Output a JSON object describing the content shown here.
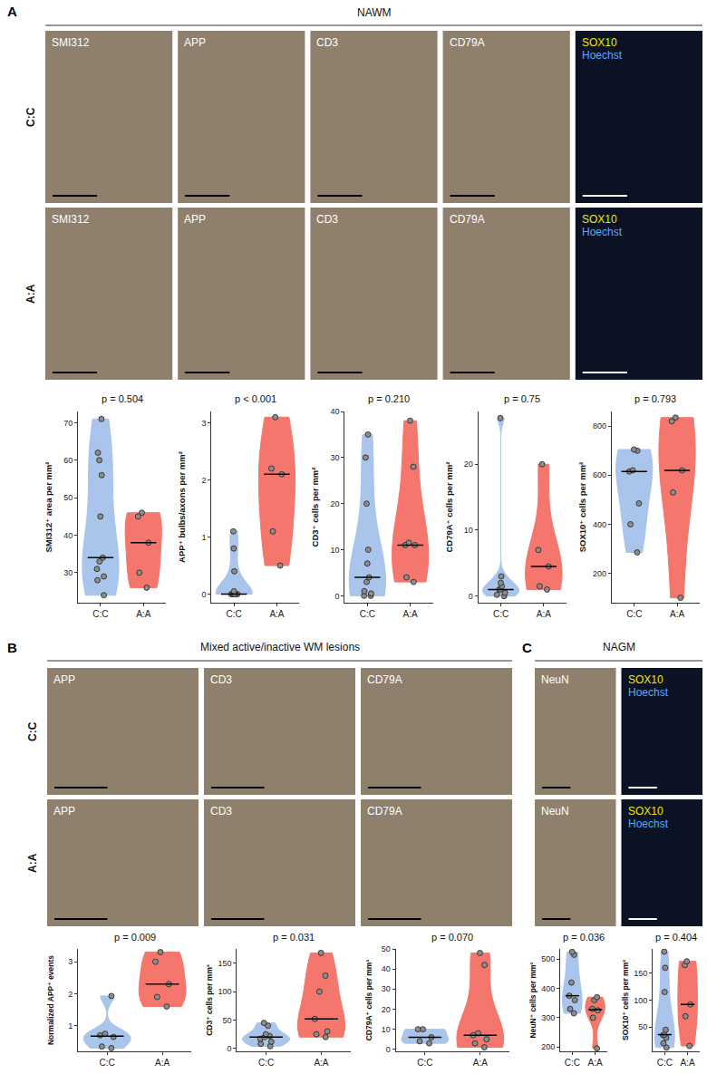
{
  "panels": [
    {
      "letter": "A",
      "title": "NAWM",
      "rows": [
        "C:C",
        "A:A"
      ],
      "images": [
        [
          "SMI312"
        ],
        [
          "APP"
        ],
        [
          "CD3"
        ],
        [
          "CD79A"
        ],
        [
          "SOX10",
          "Hoechst"
        ]
      ]
    },
    {
      "letter": "B",
      "title": "Mixed active/inactive WM lesions",
      "rows": [
        "C:C",
        "A:A"
      ],
      "images": [
        [
          "APP"
        ],
        [
          "CD3"
        ],
        [
          "CD79A"
        ]
      ]
    },
    {
      "letter": "C",
      "title": "NAGM",
      "images": [
        [
          "NeuN"
        ],
        [
          "SOX10",
          "Hoechst"
        ]
      ]
    }
  ],
  "chart_data": [
    {
      "type": "violin",
      "panel": "A",
      "title": "p = 0.504",
      "y_label": "SMI312⁺ area per mm²",
      "categories": [
        "C:C",
        "A:A"
      ],
      "values": [
        [
          71,
          62,
          60,
          56,
          45,
          34,
          33,
          31,
          29,
          28,
          24
        ],
        [
          46,
          45,
          38,
          30,
          26
        ]
      ],
      "colors": [
        "#a9c5ec",
        "#f4766c"
      ],
      "ylim": [
        22,
        73
      ],
      "yticks": [
        30,
        40,
        50,
        60,
        70
      ],
      "grid": false
    },
    {
      "type": "violin",
      "panel": "A",
      "title": "p < 0.001",
      "y_label": "APP⁺ bulbs/axons per mm²",
      "categories": [
        "C:C",
        "A:A"
      ],
      "values": [
        [
          1.1,
          0.8,
          0.4,
          0.05,
          0,
          0,
          0,
          0,
          0,
          0
        ],
        [
          3.1,
          2.2,
          2.1,
          1.1,
          0.5
        ]
      ],
      "colors": [
        "#a9c5ec",
        "#f4766c"
      ],
      "ylim": [
        -0.15,
        3.2
      ],
      "yticks": [
        0,
        1,
        2,
        3
      ],
      "grid": false
    },
    {
      "type": "violin",
      "panel": "A",
      "title": "p = 0.210",
      "y_label": "CD3⁺ cells per mm²",
      "categories": [
        "C:C",
        "A:A"
      ],
      "values": [
        [
          35,
          30,
          20,
          10,
          7,
          4,
          3,
          1,
          0.5,
          0,
          0
        ],
        [
          38,
          28,
          11.5,
          11,
          11,
          4,
          3
        ]
      ],
      "colors": [
        "#a9c5ec",
        "#f4766c"
      ],
      "ylim": [
        -1.5,
        40
      ],
      "yticks": [
        0,
        10,
        20,
        30,
        40
      ],
      "grid": false
    },
    {
      "type": "violin",
      "panel": "A",
      "title": "p = 0.75",
      "y_label": "CD79A⁺ cells per mm²",
      "categories": [
        "C:C",
        "A:A"
      ],
      "values": [
        [
          27,
          3,
          2,
          1.5,
          1,
          1,
          0.5,
          0.2,
          0
        ],
        [
          20,
          7,
          4.5,
          1.5,
          1
        ]
      ],
      "colors": [
        "#a9c5ec",
        "#f4766c"
      ],
      "ylim": [
        -1,
        28
      ],
      "yticks": [
        0,
        10,
        20
      ],
      "grid": false
    },
    {
      "type": "violin",
      "panel": "A",
      "title": "p = 0.793",
      "y_label": "SOX10⁺ cells per mm²",
      "categories": [
        "C:C",
        "A:A"
      ],
      "values": [
        [
          705,
          700,
          620,
          615,
          485,
          400,
          285
        ],
        [
          835,
          820,
          620,
          530,
          100
        ]
      ],
      "colors": [
        "#a9c5ec",
        "#f4766c"
      ],
      "ylim": [
        80,
        860
      ],
      "yticks": [
        200,
        400,
        600,
        800
      ],
      "grid": false
    },
    {
      "type": "violin",
      "panel": "B",
      "title": "p = 0.009",
      "y_label": "Normalized APP⁺ events",
      "categories": [
        "C:C",
        "A:A"
      ],
      "values": [
        [
          1.93,
          0.75,
          0.7,
          0.65,
          0.35,
          0.3
        ],
        [
          3.3,
          3.0,
          2.3,
          1.9,
          1.6
        ]
      ],
      "colors": [
        "#a9c5ec",
        "#f4766c"
      ],
      "ylim": [
        0.2,
        3.4
      ],
      "yticks": [
        1,
        2,
        3
      ],
      "grid": false
    },
    {
      "type": "violin",
      "panel": "B",
      "title": "p = 0.031",
      "y_label": "CD3⁺ cells per mm²",
      "categories": [
        "C:C",
        "A:A"
      ],
      "values": [
        [
          45,
          40,
          25,
          22,
          20,
          17,
          12,
          8,
          4
        ],
        [
          168,
          128,
          100,
          52,
          30,
          25,
          20
        ]
      ],
      "colors": [
        "#a9c5ec",
        "#f4766c"
      ],
      "ylim": [
        -5,
        175
      ],
      "yticks": [
        0,
        50,
        100,
        150
      ],
      "grid": false
    },
    {
      "type": "violin",
      "panel": "B",
      "title": "p = 0.070",
      "y_label": "CD79A⁺ cells per mm²",
      "categories": [
        "C:C",
        "A:A"
      ],
      "values": [
        [
          10,
          10,
          6,
          4,
          3
        ],
        [
          48,
          42,
          8,
          7,
          5,
          3,
          1
        ]
      ],
      "colors": [
        "#a9c5ec",
        "#f4766c"
      ],
      "ylim": [
        -1,
        50
      ],
      "yticks": [
        0,
        10,
        20,
        30,
        40,
        50
      ],
      "grid": false
    },
    {
      "type": "violin",
      "panel": "C",
      "title": "p = 0.036",
      "y_label": "NeuN⁺ cells per mm²",
      "categories": [
        "C:C",
        "A:A"
      ],
      "values": [
        [
          525,
          515,
          420,
          375,
          360,
          330,
          315
        ],
        [
          370,
          360,
          330,
          325,
          300,
          195
        ]
      ],
      "colors": [
        "#a9c5ec",
        "#f4766c"
      ],
      "ylim": [
        185,
        535
      ],
      "yticks": [
        200,
        300,
        400,
        500
      ],
      "grid": false
    },
    {
      "type": "violin",
      "panel": "C",
      "title": "p = 0.404",
      "y_label": "SOX10⁺ cells per mm²",
      "categories": [
        "C:C",
        "A:A"
      ],
      "values": [
        [
          190,
          160,
          115,
          45,
          36,
          35,
          30,
          20,
          12
        ],
        [
          172,
          165,
          92,
          70,
          15
        ]
      ],
      "colors": [
        "#a9c5ec",
        "#f4766c"
      ],
      "ylim": [
        5,
        195
      ],
      "yticks": [
        50,
        100,
        150
      ],
      "grid": false
    }
  ]
}
